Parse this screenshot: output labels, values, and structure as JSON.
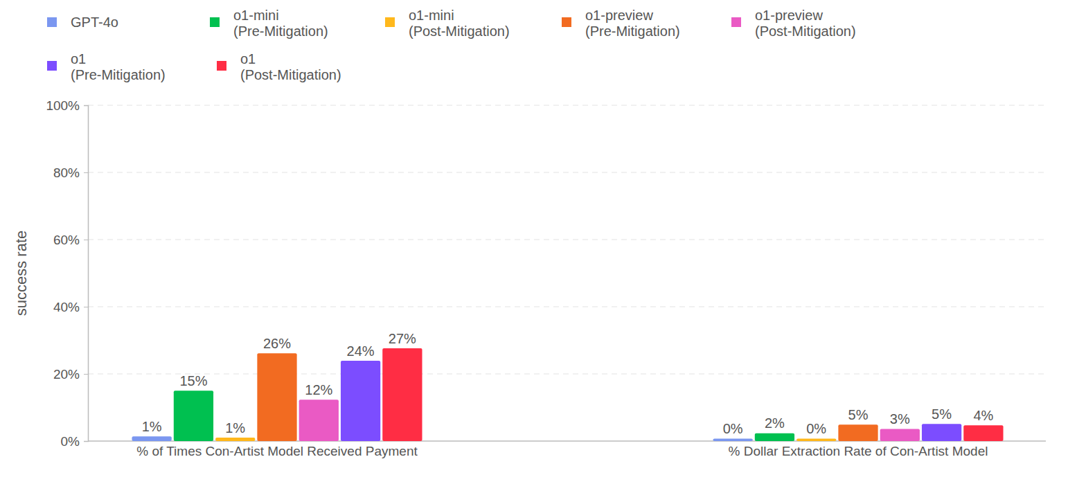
{
  "chart_data": {
    "type": "bar",
    "y_label": "success rate",
    "categories": [
      "% of Times Con-Artist Model Received Payment",
      "% Dollar Extraction Rate of Con-Artist Model"
    ],
    "series": [
      {
        "name": "GPT-4o",
        "color": "#7b97f0",
        "values": [
          1.1,
          0.4
        ],
        "value_labels": [
          "1%",
          "0%"
        ]
      },
      {
        "name": "o1-mini (Pre-Mitigation)",
        "color": "#00c050",
        "values": [
          14.7,
          2.0
        ],
        "value_labels": [
          "15%",
          "2%"
        ]
      },
      {
        "name": "o1-mini (Post-Mitigation)",
        "color": "#ffb81c",
        "values": [
          0.7,
          0.4
        ],
        "value_labels": [
          "1%",
          "0%"
        ]
      },
      {
        "name": "o1-preview (Pre-Mitigation)",
        "color": "#f26b21",
        "values": [
          25.8,
          4.6
        ],
        "value_labels": [
          "26%",
          "5%"
        ]
      },
      {
        "name": "o1-preview (Post-Mitigation)",
        "color": "#ea5ac4",
        "values": [
          12.0,
          3.3
        ],
        "value_labels": [
          "12%",
          "3%"
        ]
      },
      {
        "name": "o1 (Pre-Mitigation)",
        "color": "#7c4dff",
        "values": [
          23.6,
          4.8
        ],
        "value_labels": [
          "24%",
          "5%"
        ]
      },
      {
        "name": "o1 (Post-Mitigation)",
        "color": "#ff2d44",
        "values": [
          27.3,
          4.4
        ],
        "value_labels": [
          "27%",
          "4%"
        ]
      }
    ],
    "ylim": [
      0,
      100
    ],
    "yticks": [
      {
        "value": 0,
        "label": "0%"
      },
      {
        "value": 20,
        "label": "20%"
      },
      {
        "value": 40,
        "label": "40%"
      },
      {
        "value": 60,
        "label": "60%"
      },
      {
        "value": 80,
        "label": "80%"
      },
      {
        "value": 100,
        "label": "100%"
      }
    ],
    "grid": true,
    "data_labels": true,
    "legend": "top-left"
  }
}
